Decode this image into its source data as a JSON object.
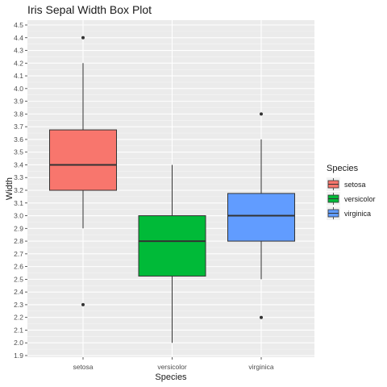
{
  "chart_data": {
    "type": "box",
    "title": "Iris Sepal Width Box Plot",
    "xlabel": "Species",
    "ylabel": "Width",
    "ylim": [
      1.9,
      4.5
    ],
    "yticks": [
      "1.9",
      "2.0",
      "2.1",
      "2.2",
      "2.3",
      "2.4",
      "2.5",
      "2.6",
      "2.7",
      "2.8",
      "2.9",
      "3.0",
      "3.1",
      "3.2",
      "3.3",
      "3.4",
      "3.5",
      "3.6",
      "3.7",
      "3.8",
      "3.9",
      "4.0",
      "4.1",
      "4.2",
      "4.3",
      "4.4",
      "4.5"
    ],
    "categories": [
      "setosa",
      "versicolor",
      "virginica"
    ],
    "grid": true,
    "legend": {
      "title": "Species",
      "placement": "right",
      "items": [
        {
          "label": "setosa",
          "color": "#F8766D"
        },
        {
          "label": "versicolor",
          "color": "#00BA38"
        },
        {
          "label": "virginica",
          "color": "#619CFF"
        }
      ]
    },
    "boxes": [
      {
        "category": "setosa",
        "min": 2.9,
        "q1": 3.2,
        "median": 3.4,
        "q3": 3.675,
        "max": 4.2,
        "outliers": [
          4.4,
          2.3
        ],
        "color": "#F8766D"
      },
      {
        "category": "versicolor",
        "min": 2.0,
        "q1": 2.525,
        "median": 2.8,
        "q3": 3.0,
        "max": 3.4,
        "outliers": [],
        "color": "#00BA38"
      },
      {
        "category": "virginica",
        "min": 2.5,
        "q1": 2.8,
        "median": 3.0,
        "q3": 3.175,
        "max": 3.6,
        "outliers": [
          3.8,
          2.2
        ],
        "color": "#619CFF"
      }
    ]
  }
}
